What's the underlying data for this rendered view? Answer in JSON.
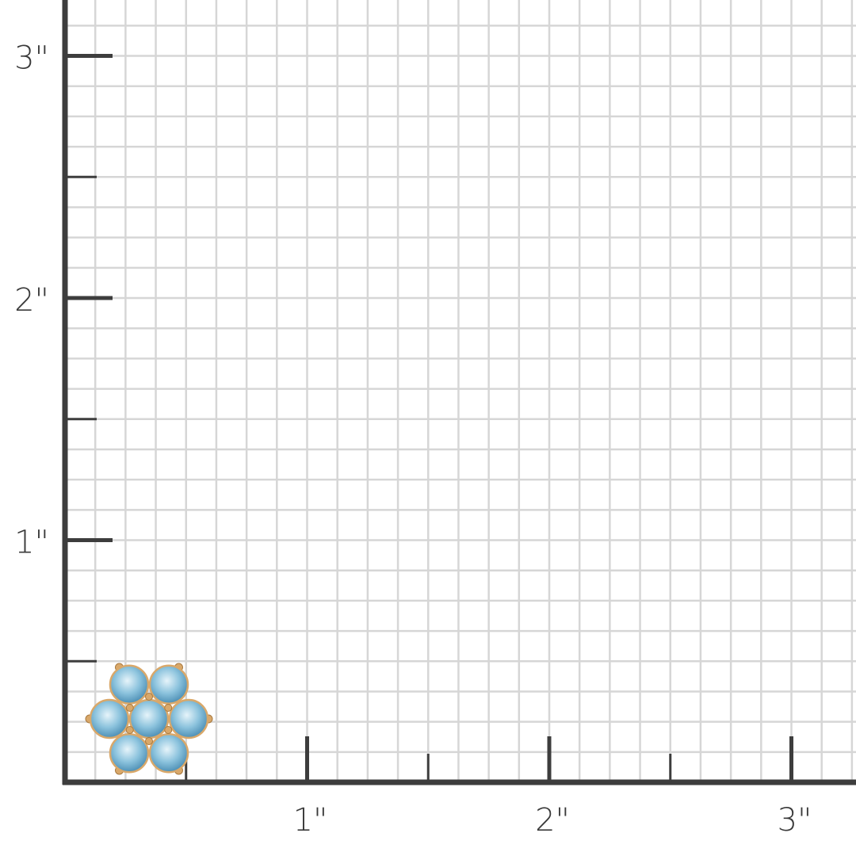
{
  "ruler": {
    "unit": "inch",
    "y_labels": [
      "1\"",
      "2\"",
      "3\""
    ],
    "x_labels": [
      "1\"",
      "2\"",
      "3\""
    ],
    "grid_subdivisions_per_inch": 8,
    "colors": {
      "axis": "#3d3d3d",
      "grid": "#d6d6d6",
      "background": "#ffffff"
    }
  },
  "product": {
    "description_icon": "flower-cluster-earring",
    "stone_color": "#8cc3dd",
    "metal_color": "#d9a86a",
    "stone_count": 7,
    "approx_width_in": 0.5
  }
}
